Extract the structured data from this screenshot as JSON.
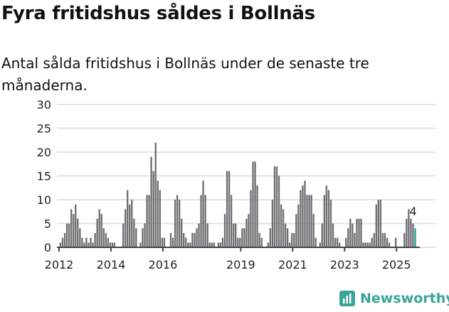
{
  "chart_data": {
    "type": "bar",
    "title": "Fyra fritidshus såldes i Bollnäs",
    "subtitle": "Antal sålda fritidshus i Bollnäs under de senaste tre månaderna.",
    "xlabel": "",
    "ylabel": "",
    "ylim": [
      0,
      30
    ],
    "yticks": [
      0,
      5,
      10,
      15,
      20,
      25,
      30
    ],
    "xticks": [
      "2012",
      "2014",
      "2016",
      "2019",
      "2021",
      "2023",
      "2025"
    ],
    "start": "2012-01",
    "frequency": "monthly",
    "values": [
      1,
      2,
      3,
      5,
      5,
      8,
      7,
      9,
      6,
      4,
      2,
      1,
      2,
      1,
      2,
      1,
      3,
      6,
      8,
      7,
      4,
      3,
      2,
      1,
      1,
      1,
      0,
      0,
      0,
      5,
      8,
      12,
      9,
      10,
      6,
      4,
      0,
      1,
      4,
      5,
      11,
      11,
      19,
      16,
      22,
      14,
      12,
      2,
      2,
      0,
      0,
      3,
      2,
      10,
      11,
      10,
      6,
      3,
      2,
      1,
      1,
      3,
      3,
      4,
      5,
      11,
      14,
      11,
      5,
      1,
      1,
      1,
      0,
      1,
      1,
      2,
      7,
      16,
      16,
      11,
      5,
      5,
      2,
      2,
      4,
      4,
      6,
      7,
      12,
      18,
      18,
      13,
      3,
      2,
      0,
      0,
      1,
      4,
      10,
      17,
      17,
      15,
      9,
      8,
      5,
      4,
      1,
      3,
      3,
      7,
      9,
      12,
      13,
      14,
      11,
      11,
      11,
      7,
      2,
      0,
      1,
      5,
      11,
      13,
      12,
      10,
      5,
      2,
      2,
      1,
      0,
      0,
      2,
      4,
      6,
      5,
      3,
      6,
      6,
      6,
      1,
      1,
      1,
      1,
      2,
      3,
      9,
      10,
      10,
      3,
      3,
      2,
      1,
      0,
      0,
      2,
      0,
      0,
      0,
      3,
      6,
      8,
      6,
      5,
      4
    ],
    "last_label": "4",
    "bar_color": "#6d6c71",
    "highlight_color": "#1a9e92",
    "grid_color": "#e3e3e3"
  },
  "brand": {
    "name": "Newsworthy",
    "color": "#3aa597"
  }
}
